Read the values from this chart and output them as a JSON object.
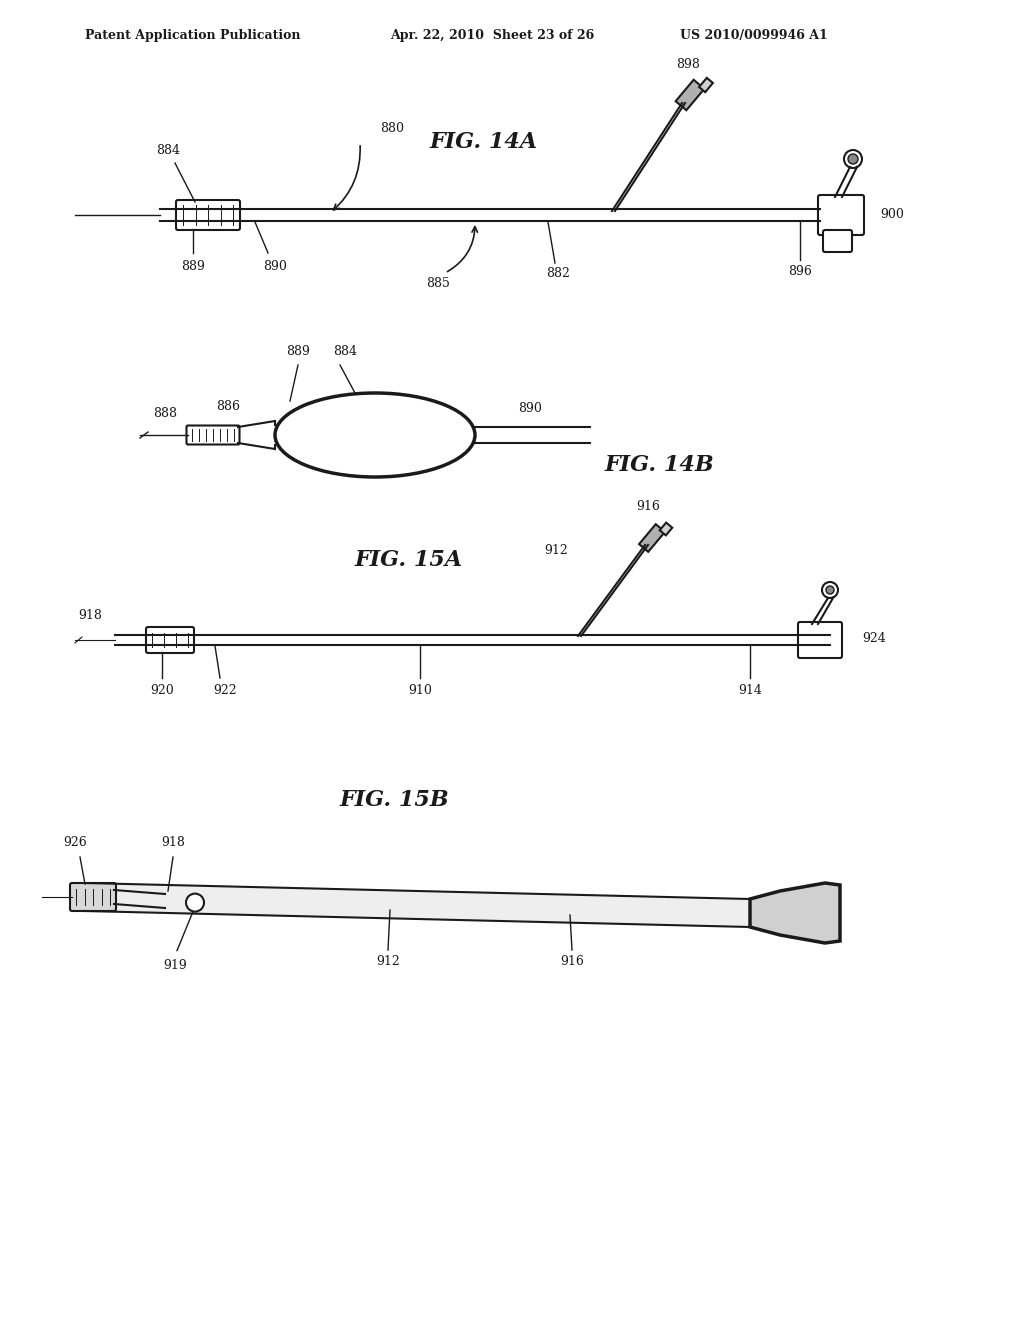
{
  "bg_color": "#ffffff",
  "line_color": "#1a1a1a",
  "header_left": "Patent Application Publication",
  "header_mid": "Apr. 22, 2010  Sheet 23 of 26",
  "header_right": "US 2010/0099946 A1",
  "fig14a_label": "FIG. 14A",
  "fig14b_label": "FIG. 14B",
  "fig15a_label": "FIG. 15A",
  "fig15b_label": "FIG. 15B",
  "lw_main": 1.5,
  "lw_thick": 2.5
}
